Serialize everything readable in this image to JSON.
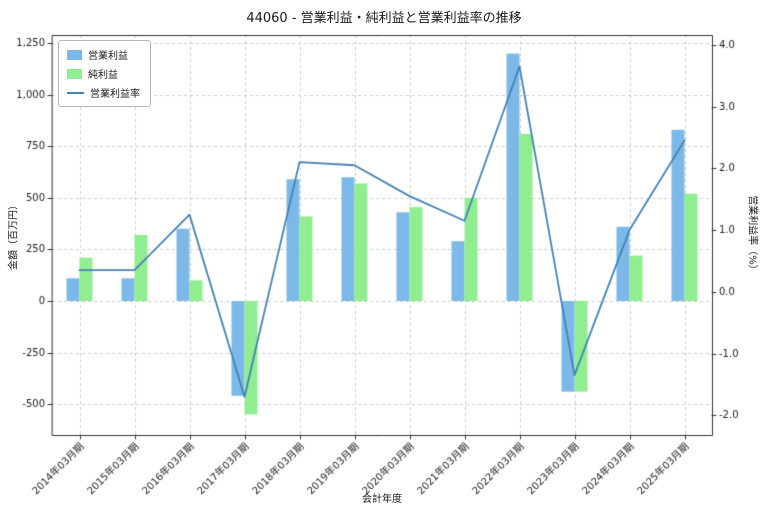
{
  "title": "44060 - 営業利益・純利益と営業利益率の推移",
  "chart_data": {
    "type": "bar",
    "subtype": "grouped-bars-with-line",
    "categories": [
      "2014年03月期",
      "2015年03月期",
      "2016年03月期",
      "2017年03月期",
      "2018年03月期",
      "2019年03月期",
      "2020年03月期",
      "2021年03月期",
      "2022年03月期",
      "2023年03月期",
      "2024年03月期",
      "2025年03月期"
    ],
    "series": [
      {
        "name": "営業利益",
        "type": "bar",
        "axis": "left",
        "color": "#7cb9e8",
        "values": [
          110,
          110,
          350,
          -460,
          590,
          600,
          430,
          290,
          1200,
          -440,
          360,
          830
        ]
      },
      {
        "name": "純利益",
        "type": "bar",
        "axis": "left",
        "color": "#90ee90",
        "values": [
          210,
          320,
          100,
          -550,
          410,
          570,
          455,
          500,
          810,
          -440,
          220,
          520
        ]
      },
      {
        "name": "営業利益率",
        "type": "line",
        "axis": "right",
        "color": "#4682b4",
        "values": [
          0.35,
          0.35,
          1.25,
          -1.7,
          2.1,
          2.05,
          1.55,
          1.15,
          3.65,
          -1.35,
          1.0,
          2.45
        ]
      }
    ],
    "xlabel": "会計年度",
    "ylabel_left": "金額（百万円）",
    "ylabel_right": "営業利益率（%）",
    "ylim_left": [
      -650,
      1290
    ],
    "ylim_right": [
      -2.32,
      4.16
    ],
    "yticks_left": [
      -500,
      -250,
      0,
      250,
      500,
      750,
      1000,
      1250
    ],
    "yticks_right": [
      -2.0,
      -1.0,
      0.0,
      1.0,
      2.0,
      3.0,
      4.0
    ],
    "grid": true,
    "grid_color": "#cccccc",
    "axis_color": "#333333",
    "legend_position": "upper-left"
  }
}
